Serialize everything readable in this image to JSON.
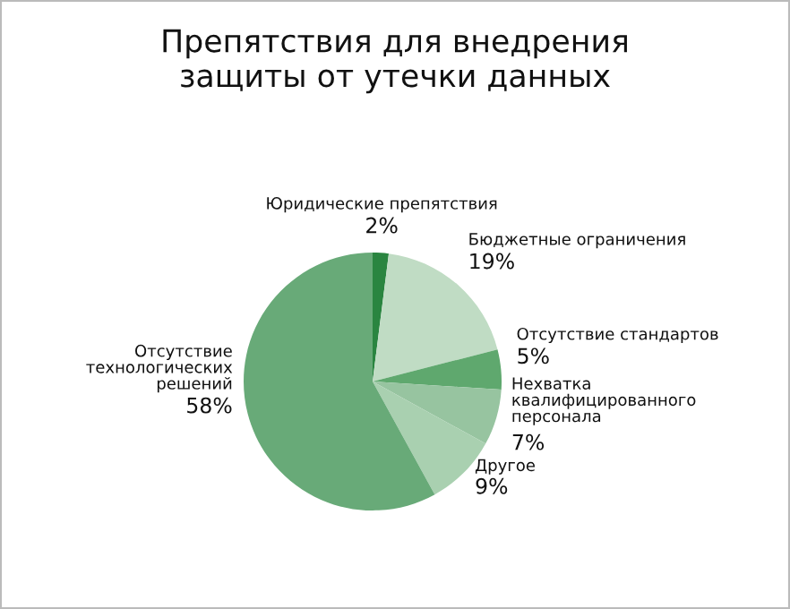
{
  "chart_data": {
    "type": "pie",
    "title": "Препятствия для внедрения\nзащиты от утечки данных",
    "categories": [
      "Юридические препятствия",
      "Бюджетные ограничения",
      "Отсутствие стандартов",
      "Нехватка\nквалифицированного\nперсонала",
      "Другое",
      "Отсутствие\nтехнологических\nрешений"
    ],
    "values": [
      2,
      19,
      5,
      7,
      9,
      58
    ],
    "colors": [
      "#2a8540",
      "#c0dcc4",
      "#5fa86e",
      "#97c4a0",
      "#a9d0b0",
      "#68aa78"
    ],
    "value_labels": [
      "2%",
      "19%",
      "5%",
      "7%",
      "9%",
      "58%"
    ],
    "legend": false
  }
}
